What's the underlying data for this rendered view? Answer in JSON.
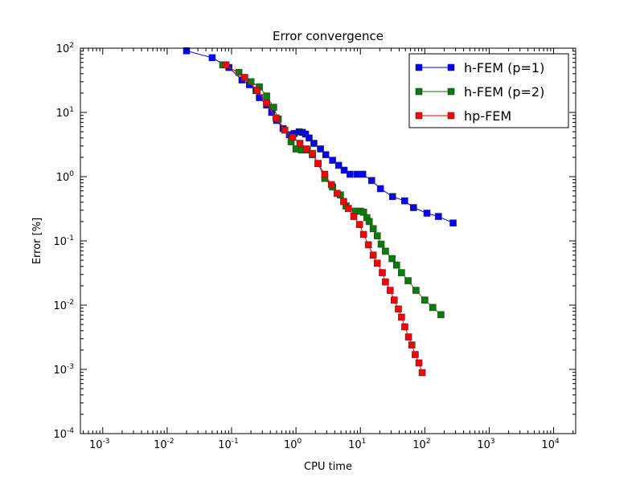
{
  "chart_data": {
    "type": "line",
    "title": "Error convergence",
    "xlabel": "CPU time",
    "ylabel": "Error [%]",
    "xscale": "log",
    "yscale": "log",
    "xlim": [
      0.00045,
      22000
    ],
    "ylim": [
      0.0001,
      100
    ],
    "grid": false,
    "legend_position": "top-right",
    "x_ticks": [
      {
        "base": "10",
        "exp": "-3",
        "v": 0.001
      },
      {
        "base": "10",
        "exp": "-2",
        "v": 0.01
      },
      {
        "base": "10",
        "exp": "-1",
        "v": 0.1
      },
      {
        "base": "10",
        "exp": "0",
        "v": 1
      },
      {
        "base": "10",
        "exp": "1",
        "v": 10
      },
      {
        "base": "10",
        "exp": "2",
        "v": 100
      },
      {
        "base": "10",
        "exp": "3",
        "v": 1000
      },
      {
        "base": "10",
        "exp": "4",
        "v": 10000
      }
    ],
    "y_ticks": [
      {
        "base": "10",
        "exp": "2",
        "v": 100
      },
      {
        "base": "10",
        "exp": "1",
        "v": 10
      },
      {
        "base": "10",
        "exp": "0",
        "v": 1
      },
      {
        "base": "10",
        "exp": "-1",
        "v": 0.1
      },
      {
        "base": "10",
        "exp": "-2",
        "v": 0.01
      },
      {
        "base": "10",
        "exp": "-3",
        "v": 0.001
      },
      {
        "base": "10",
        "exp": "-4",
        "v": 0.0001
      }
    ],
    "series": [
      {
        "name": "h-FEM (p=1)",
        "color": "#0000ff",
        "points": [
          [
            0.02,
            91
          ],
          [
            0.05,
            71
          ],
          [
            0.091,
            50
          ],
          [
            0.145,
            32
          ],
          [
            0.19,
            27
          ],
          [
            0.24,
            22
          ],
          [
            0.27,
            17
          ],
          [
            0.35,
            13
          ],
          [
            0.42,
            10
          ],
          [
            0.5,
            7.5
          ],
          [
            0.63,
            5.6
          ],
          [
            0.79,
            4.5
          ],
          [
            0.94,
            4.7
          ],
          [
            1.12,
            5.0
          ],
          [
            1.26,
            4.9
          ],
          [
            1.41,
            4.6
          ],
          [
            1.6,
            4.0
          ],
          [
            1.9,
            3.3
          ],
          [
            2.4,
            2.7
          ],
          [
            2.9,
            2.2
          ],
          [
            3.7,
            1.8
          ],
          [
            4.6,
            1.5
          ],
          [
            5.6,
            1.26
          ],
          [
            6.9,
            1.09
          ],
          [
            8.9,
            1.09
          ],
          [
            10.9,
            1.09
          ],
          [
            15,
            0.87
          ],
          [
            20.5,
            0.65
          ],
          [
            31.6,
            0.49
          ],
          [
            48.7,
            0.42
          ],
          [
            66.8,
            0.33
          ],
          [
            108,
            0.27
          ],
          [
            163,
            0.24
          ],
          [
            275,
            0.19
          ]
        ]
      },
      {
        "name": "h-FEM (p=2)",
        "color": "#008000",
        "points": [
          [
            0.073,
            55
          ],
          [
            0.13,
            42
          ],
          [
            0.2,
            30
          ],
          [
            0.27,
            25
          ],
          [
            0.35,
            18
          ],
          [
            0.45,
            12
          ],
          [
            0.53,
            7.9
          ],
          [
            0.84,
            3.5
          ],
          [
            1.0,
            2.7
          ],
          [
            1.22,
            2.6
          ],
          [
            1.5,
            2.6
          ],
          [
            1.8,
            2.2
          ],
          [
            2.2,
            1.6
          ],
          [
            2.8,
            0.94
          ],
          [
            3.7,
            0.69
          ],
          [
            4.9,
            0.52
          ],
          [
            6.0,
            0.35
          ],
          [
            8.4,
            0.29
          ],
          [
            10,
            0.29
          ],
          [
            11.2,
            0.28
          ],
          [
            12.6,
            0.23
          ],
          [
            13.7,
            0.2
          ],
          [
            15.8,
            0.155
          ],
          [
            18.3,
            0.12
          ],
          [
            21,
            0.089
          ],
          [
            24.5,
            0.069
          ],
          [
            31,
            0.053
          ],
          [
            36.5,
            0.042
          ],
          [
            43.5,
            0.032
          ],
          [
            55,
            0.024
          ],
          [
            73,
            0.017
          ],
          [
            100,
            0.012
          ],
          [
            133,
            0.0092
          ],
          [
            178,
            0.0071
          ]
        ]
      },
      {
        "name": "hp-FEM",
        "color": "#ff0000",
        "points": [
          [
            0.082,
            55
          ],
          [
            0.16,
            35
          ],
          [
            0.25,
            22
          ],
          [
            0.35,
            14
          ],
          [
            0.49,
            8.2
          ],
          [
            0.67,
            5.3
          ],
          [
            0.89,
            4.1
          ],
          [
            1.15,
            3.3
          ],
          [
            1.45,
            2.7
          ],
          [
            1.8,
            2.3
          ],
          [
            2.2,
            1.6
          ],
          [
            2.8,
            1.09
          ],
          [
            3.55,
            0.75
          ],
          [
            4.35,
            0.55
          ],
          [
            5.5,
            0.41
          ],
          [
            6.5,
            0.32
          ],
          [
            7.9,
            0.24
          ],
          [
            9.7,
            0.18
          ],
          [
            11.2,
            0.126
          ],
          [
            13.3,
            0.087
          ],
          [
            15.8,
            0.06
          ],
          [
            18.3,
            0.045
          ],
          [
            21.9,
            0.032
          ],
          [
            24.5,
            0.023
          ],
          [
            29,
            0.017
          ],
          [
            33.5,
            0.012
          ],
          [
            38.9,
            0.0087
          ],
          [
            43.5,
            0.0065
          ],
          [
            48.9,
            0.0046
          ],
          [
            56,
            0.0032
          ],
          [
            63,
            0.0024
          ],
          [
            71,
            0.0017
          ],
          [
            81,
            0.00126
          ],
          [
            91,
            0.00089
          ]
        ]
      }
    ]
  }
}
